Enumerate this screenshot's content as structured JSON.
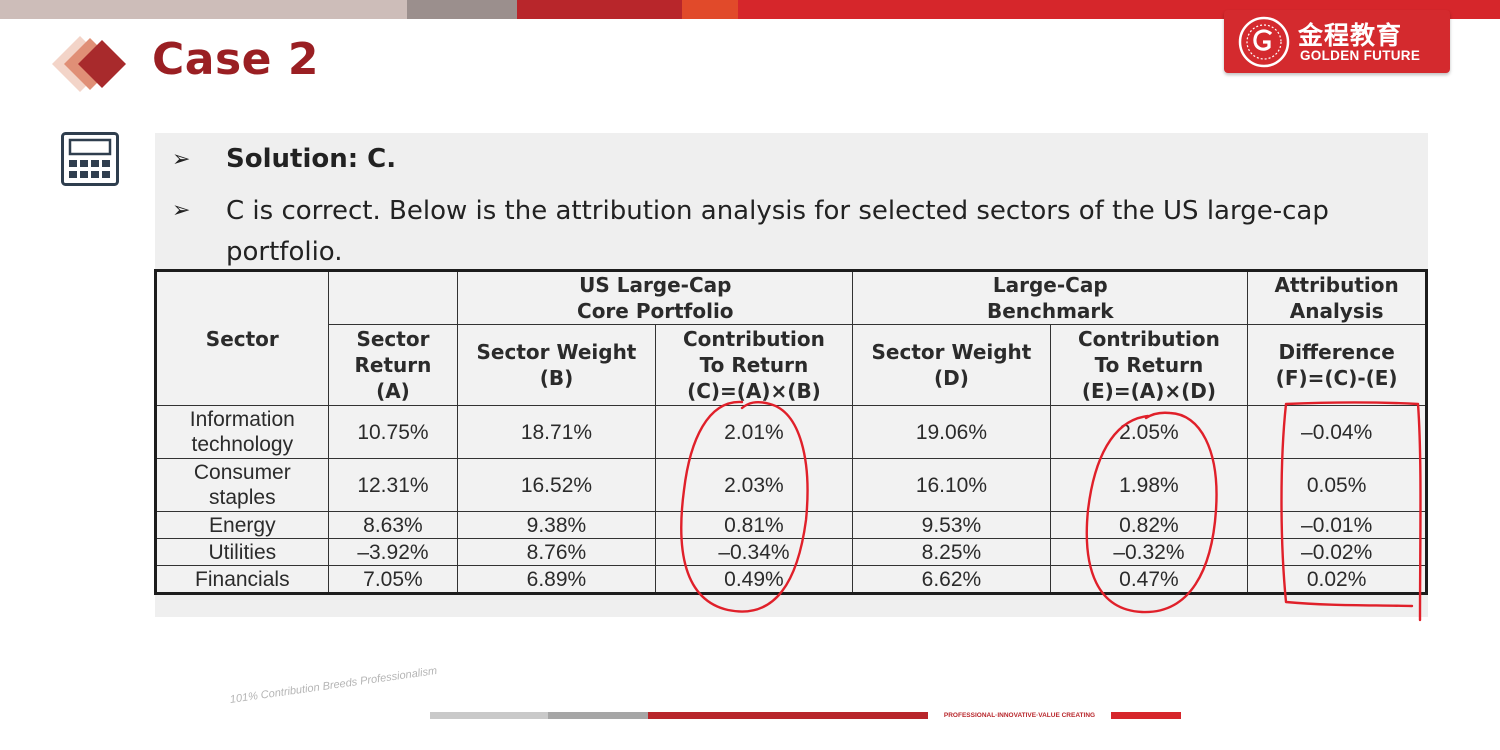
{
  "title": "Case 2",
  "logo": {
    "name_cn": "金程教育",
    "name_en": "GOLDEN FUTURE"
  },
  "bullets": {
    "solution": "Solution: C.",
    "explanation": "C is correct. Below is the attribution analysis for selected sectors of the US large-cap portfolio."
  },
  "table": {
    "group_headers": {
      "portfolio": "US Large-Cap\nCore Portfolio",
      "benchmark": "Large-Cap\nBenchmark",
      "attribution": "Attribution\nAnalysis"
    },
    "col_headers": {
      "sector": "Sector",
      "sector_return": "Sector\nReturn\n(A)",
      "portfolio_weight": "Sector Weight\n(B)",
      "portfolio_contribution": "Contribution\nTo Return\n(C)=(A)×(B)",
      "benchmark_weight": "Sector Weight\n(D)",
      "benchmark_contribution": "Contribution\nTo Return\n(E)=(A)×(D)",
      "difference": "Difference\n(F)=(C)-(E)"
    },
    "rows": [
      {
        "sector": "Information\ntechnology",
        "a": "10.75%",
        "b": "18.71%",
        "c": "2.01%",
        "d": "19.06%",
        "e": "2.05%",
        "f": "–0.04%"
      },
      {
        "sector": "Consumer\nstaples",
        "a": "12.31%",
        "b": "16.52%",
        "c": "2.03%",
        "d": "16.10%",
        "e": "1.98%",
        "f": "0.05%"
      },
      {
        "sector": "Energy",
        "a": "8.63%",
        "b": "9.38%",
        "c": "0.81%",
        "d": "9.53%",
        "e": "0.82%",
        "f": "–0.01%"
      },
      {
        "sector": "Utilities",
        "a": "–3.92%",
        "b": "8.76%",
        "c": "–0.34%",
        "d": "8.25%",
        "e": "–0.32%",
        "f": "–0.02%"
      },
      {
        "sector": "Financials",
        "a": "7.05%",
        "b": "6.89%",
        "c": "0.49%",
        "d": "6.62%",
        "e": "0.47%",
        "f": "0.02%"
      }
    ]
  },
  "footer": {
    "slogan": "101% Contribution Breeds Professionalism",
    "tagline": "PROFESSIONAL·INNOVATIVE·VALUE CREATING"
  },
  "colors": {
    "brand_red": "#d42a2e",
    "title_red": "#9a1f23",
    "annotation_red": "#e0202a"
  }
}
